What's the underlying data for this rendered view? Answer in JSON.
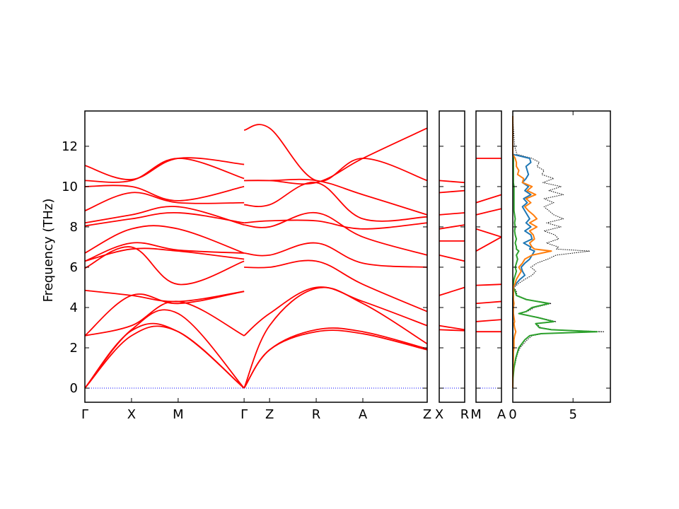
{
  "chart_data": {
    "type": "line",
    "ylabel": "Frequency (THz)",
    "ylim": [
      -0.7,
      13.75
    ],
    "yticks": [
      0,
      2,
      4,
      6,
      8,
      10,
      12
    ],
    "colors": {
      "bands": "#ff0000",
      "zero_line": "#0000ff",
      "dos_total": "#000000",
      "dos_1": "#1f77b4",
      "dos_2": "#ff7f0e",
      "dos_3": "#2ca02c"
    },
    "band_panels": [
      {
        "labels": [
          "Γ",
          "X",
          "M",
          "Γ",
          "Z",
          "R",
          "A",
          "Z"
        ],
        "label_positions": [
          0,
          0.5,
          1,
          1.707,
          1.98,
          2.48,
          2.98,
          3.67
        ]
      },
      {
        "labels": [
          "X",
          "R"
        ],
        "label_positions": [
          0,
          0.27
        ]
      },
      {
        "labels": [
          "M",
          "A"
        ],
        "label_positions": [
          0,
          0.27
        ]
      }
    ],
    "band_segments": [
      {
        "panel": 0,
        "x": [
          0,
          0.5,
          1,
          1.707
        ],
        "bands": [
          [
            0,
            2.6,
            2.8,
            0
          ],
          [
            0,
            2.85,
            2.8,
            0
          ],
          [
            0,
            2.9,
            3.7,
            0
          ],
          [
            2.6,
            3.1,
            4.3,
            2.6
          ],
          [
            2.6,
            4.6,
            4.2,
            4.8
          ],
          [
            4.85,
            4.6,
            4.3,
            4.8
          ],
          [
            5.95,
            7.0,
            5.15,
            6.3
          ],
          [
            6.3,
            6.9,
            6.8,
            6.4
          ],
          [
            6.3,
            7.2,
            6.85,
            6.7
          ],
          [
            6.7,
            7.9,
            7.9,
            6.7
          ],
          [
            8.05,
            8.4,
            8.7,
            8.2
          ],
          [
            8.2,
            8.6,
            9.0,
            8.1
          ],
          [
            8.8,
            9.7,
            9.2,
            9.2
          ],
          [
            10.0,
            10.0,
            9.3,
            10.0
          ],
          [
            10.3,
            10.3,
            11.4,
            10.4
          ],
          [
            11.05,
            10.35,
            11.4,
            11.1
          ]
        ]
      },
      {
        "panel": 0,
        "x": [
          1.707,
          1.98,
          2.48,
          2.98,
          3.67
        ],
        "bands": [
          [
            0,
            1.9,
            2.8,
            2.7,
            1.9
          ],
          [
            0,
            1.9,
            2.9,
            2.8,
            1.95
          ],
          [
            0,
            3.1,
            4.95,
            4.2,
            2.2
          ],
          [
            2.6,
            3.7,
            5.0,
            4.3,
            3.1
          ],
          [
            6.0,
            6.0,
            6.3,
            5.15,
            3.8
          ],
          [
            6.7,
            6.6,
            7.2,
            6.2,
            6.0
          ],
          [
            8.1,
            8.0,
            8.7,
            7.5,
            6.6
          ],
          [
            8.2,
            8.3,
            8.3,
            7.9,
            8.2
          ],
          [
            9.1,
            9.1,
            10.2,
            8.4,
            8.5
          ],
          [
            10.3,
            10.3,
            10.3,
            9.6,
            8.6
          ],
          [
            12.8,
            12.9,
            10.3,
            11.4,
            10.3
          ],
          [
            10.3,
            10.3,
            10.2,
            11.4,
            12.9
          ]
        ]
      },
      {
        "panel": 1,
        "x": [
          0,
          0.27
        ],
        "bands": [
          [
            2.9,
            2.85
          ],
          [
            3.1,
            2.9
          ],
          [
            4.6,
            5.0
          ],
          [
            6.6,
            6.3
          ],
          [
            7.3,
            7.3
          ],
          [
            7.9,
            8.1
          ],
          [
            8.6,
            8.7
          ],
          [
            9.7,
            9.8
          ],
          [
            10.3,
            10.2
          ]
        ]
      },
      {
        "panel": 2,
        "x": [
          0,
          0.27
        ],
        "bands": [
          [
            2.8,
            2.8
          ],
          [
            3.3,
            3.4
          ],
          [
            4.2,
            4.3
          ],
          [
            5.1,
            5.15
          ],
          [
            6.8,
            7.5
          ],
          [
            7.9,
            7.5
          ],
          [
            8.6,
            8.9
          ],
          [
            9.2,
            9.6
          ],
          [
            11.4,
            11.4
          ]
        ]
      }
    ],
    "dos": {
      "xlim": [
        0,
        8.1
      ],
      "xticks": [
        0,
        5
      ],
      "frequency": [
        0,
        0.5,
        1.0,
        1.5,
        1.8,
        2.0,
        2.4,
        2.6,
        2.7,
        2.8,
        2.9,
        3.0,
        3.2,
        3.3,
        3.5,
        3.7,
        3.8,
        4.0,
        4.2,
        4.4,
        4.6,
        4.8,
        5.0,
        5.2,
        5.4,
        5.6,
        5.8,
        6.0,
        6.2,
        6.4,
        6.6,
        6.8,
        6.9,
        7.0,
        7.2,
        7.4,
        7.6,
        7.8,
        8.0,
        8.2,
        8.4,
        8.6,
        8.8,
        9.0,
        9.2,
        9.4,
        9.6,
        9.8,
        10.0,
        10.2,
        10.4,
        10.6,
        10.8,
        11.0,
        11.2,
        11.4,
        11.6,
        12.0,
        13.0,
        13.5
      ],
      "series": [
        {
          "key": "dos_total",
          "style": "dotted",
          "values": [
            0,
            0.02,
            0.12,
            0.3,
            0.45,
            0.6,
            1.2,
            1.6,
            2.5,
            7.6,
            3.4,
            2.3,
            2.0,
            3.6,
            2.2,
            0.6,
            1.2,
            1.8,
            3.2,
            1.2,
            0.35,
            0.3,
            0.1,
            0.5,
            1.0,
            1.6,
            1.9,
            1.5,
            2.0,
            2.9,
            3.6,
            6.4,
            3.6,
            3.8,
            2.8,
            3.8,
            3.5,
            2.6,
            4.0,
            2.8,
            4.2,
            3.4,
            3.0,
            2.6,
            3.4,
            2.6,
            4.2,
            3.0,
            4.0,
            2.5,
            3.4,
            2.4,
            2.6,
            2.0,
            2.2,
            1.6,
            0.35,
            0.15,
            0.05,
            0
          ]
        },
        {
          "key": "dos_1",
          "style": "solid",
          "values": [
            0,
            0,
            0,
            0,
            0,
            0,
            0,
            0,
            0,
            0,
            0,
            0,
            0,
            0,
            0,
            0,
            0,
            0,
            0,
            0,
            0.02,
            0.05,
            0.05,
            0.3,
            0.6,
            1.0,
            0.8,
            0.7,
            1.0,
            1.4,
            1.6,
            1.8,
            1.4,
            1.5,
            0.9,
            1.6,
            1.5,
            1.0,
            1.5,
            1.1,
            1.4,
            1.2,
            1.0,
            0.8,
            1.2,
            0.9,
            1.5,
            1.0,
            1.3,
            0.8,
            1.1,
            1.3,
            1.2,
            1.1,
            1.5,
            1.4,
            0,
            0,
            0,
            0
          ]
        },
        {
          "key": "dos_2",
          "style": "solid",
          "values": [
            0,
            0,
            0.02,
            0.05,
            0.05,
            0.1,
            0.1,
            0.15,
            0.2,
            0.25,
            0.2,
            0.15,
            0.1,
            0.15,
            0.1,
            0.05,
            0.05,
            0.05,
            0.1,
            0.05,
            0.05,
            0.05,
            0.05,
            0.2,
            0.3,
            0.5,
            0.7,
            0.5,
            0.8,
            1.0,
            1.6,
            3.2,
            1.8,
            1.6,
            1.4,
            1.8,
            1.7,
            1.4,
            2.0,
            1.4,
            2.0,
            1.7,
            1.3,
            1.0,
            1.5,
            1.1,
            1.9,
            1.2,
            1.6,
            0.8,
            0.9,
            0.4,
            0.5,
            0.3,
            0.3,
            0.2,
            0,
            0,
            0,
            0
          ]
        },
        {
          "key": "dos_3",
          "style": "solid",
          "values": [
            0,
            0.02,
            0.1,
            0.25,
            0.4,
            0.5,
            1.0,
            1.4,
            2.3,
            7.0,
            3.2,
            2.2,
            1.9,
            3.4,
            2.1,
            0.5,
            1.1,
            1.6,
            3.0,
            1.1,
            0.3,
            0.2,
            0.05,
            0.05,
            0.1,
            0.2,
            0.3,
            0.2,
            0.3,
            0.4,
            0.3,
            0.5,
            0.3,
            0.3,
            0.2,
            0.3,
            0.2,
            0.15,
            0.2,
            0.15,
            0.2,
            0.15,
            0.1,
            0.1,
            0.1,
            0.1,
            0.1,
            0.1,
            0.1,
            0.05,
            0.05,
            0.05,
            0.05,
            0.05,
            0.05,
            0.05,
            0,
            0,
            0,
            0
          ]
        }
      ]
    }
  }
}
